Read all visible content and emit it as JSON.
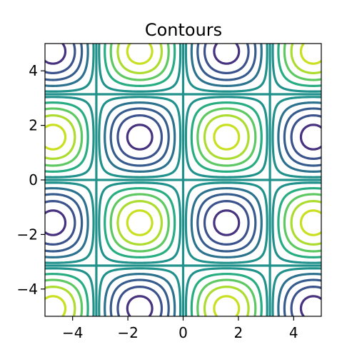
{
  "chart_data": {
    "type": "contour",
    "title": "Contours",
    "function": "sin(x) * sin(y)",
    "xlim": [
      -5,
      5
    ],
    "ylim": [
      -5,
      5
    ],
    "xticks": [
      -4,
      -2,
      0,
      2,
      4
    ],
    "yticks": [
      -4,
      -2,
      0,
      2,
      4
    ],
    "xtick_labels": [
      "−4",
      "−2",
      "0",
      "2",
      "4"
    ],
    "ytick_labels": [
      "−4",
      "−2",
      "0",
      "2",
      "4"
    ],
    "levels": [
      -0.9,
      -0.7,
      -0.5,
      -0.3,
      -0.1,
      0.1,
      0.3,
      0.5,
      0.7,
      0.9
    ],
    "level_colors": [
      "#46327e",
      "#3b528b",
      "#365c8d",
      "#2c728e",
      "#21918c",
      "#21918c",
      "#27ad81",
      "#5ec962",
      "#addc30",
      "#c8e020"
    ],
    "zero_line_color": "#21918c",
    "colormap": "viridis",
    "grid": false
  }
}
